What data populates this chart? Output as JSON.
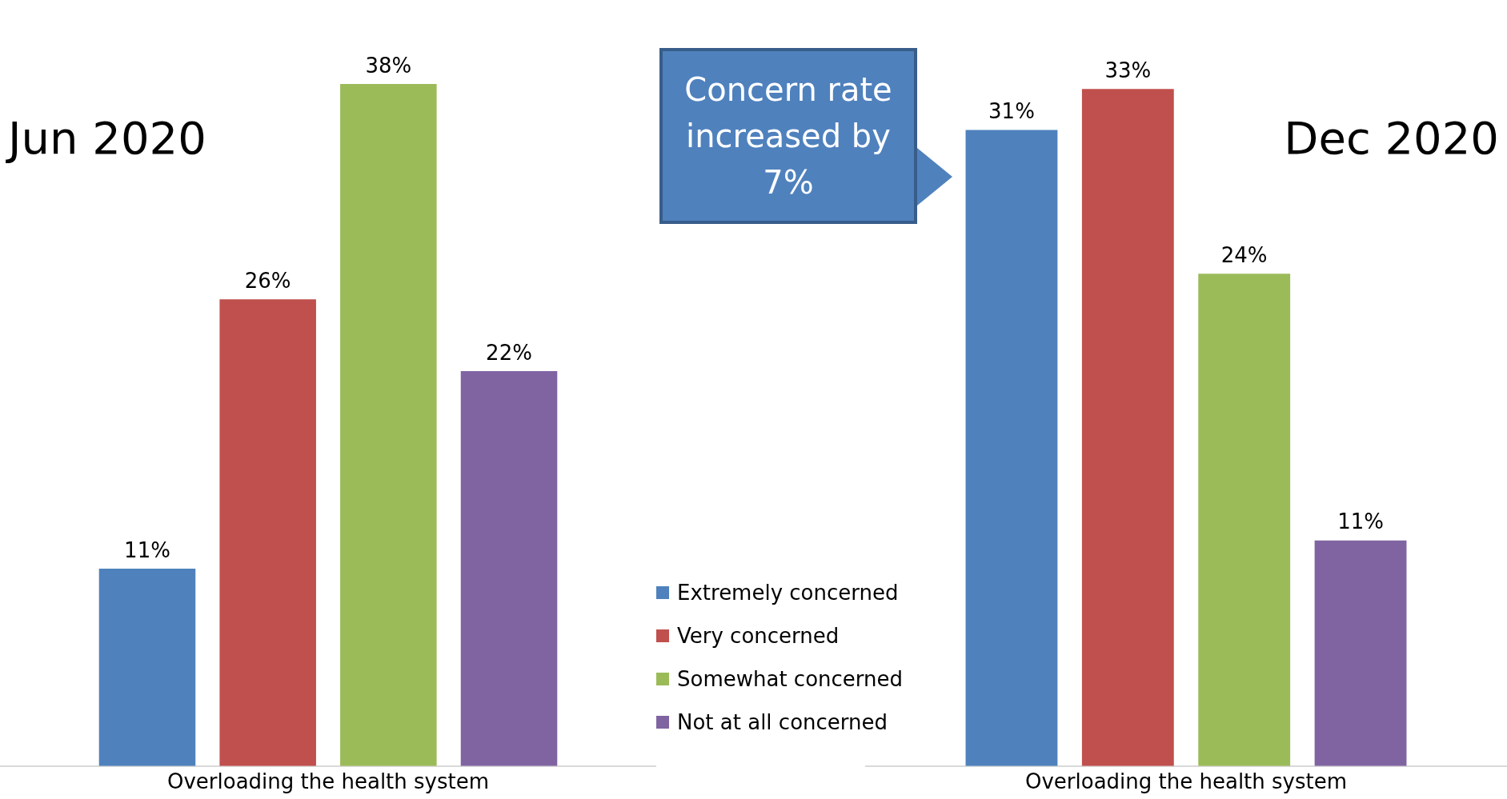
{
  "chart_data": [
    {
      "type": "bar",
      "title": "Jun 2020",
      "categories": [
        null
      ],
      "xlabel": "Overloading the health system",
      "legend": false,
      "series": [
        {
          "color": "#4f81bd",
          "values": [
            11
          ],
          "value_labels": [
            "11%"
          ]
        },
        {
          "color": "#c0504d",
          "values": [
            26
          ],
          "value_labels": [
            "26%"
          ]
        },
        {
          "color": "#9bbb59",
          "values": [
            38
          ],
          "value_labels": [
            "38%"
          ]
        },
        {
          "color": "#8064a2",
          "values": [
            22
          ],
          "value_labels": [
            "22%"
          ]
        }
      ]
    },
    {
      "type": "bar",
      "title": "Dec 2020",
      "categories": [
        null
      ],
      "xlabel": "Overloading the health system",
      "legend": "left",
      "annotations": [
        "Concern rate increased by 7%"
      ],
      "series": [
        {
          "name": "Extremely concerned",
          "color": "#4f81bd",
          "values": [
            31
          ],
          "value_labels": [
            "31%"
          ]
        },
        {
          "name": "Very concerned",
          "color": "#c0504d",
          "values": [
            33
          ],
          "value_labels": [
            "33%"
          ]
        },
        {
          "name": "Somewhat concerned",
          "color": "#9bbb59",
          "values": [
            24
          ],
          "value_labels": [
            "24%"
          ]
        },
        {
          "name": "Not at all concerned",
          "color": "#8064a2",
          "values": [
            11
          ],
          "value_labels": [
            "11%"
          ]
        }
      ]
    }
  ]
}
